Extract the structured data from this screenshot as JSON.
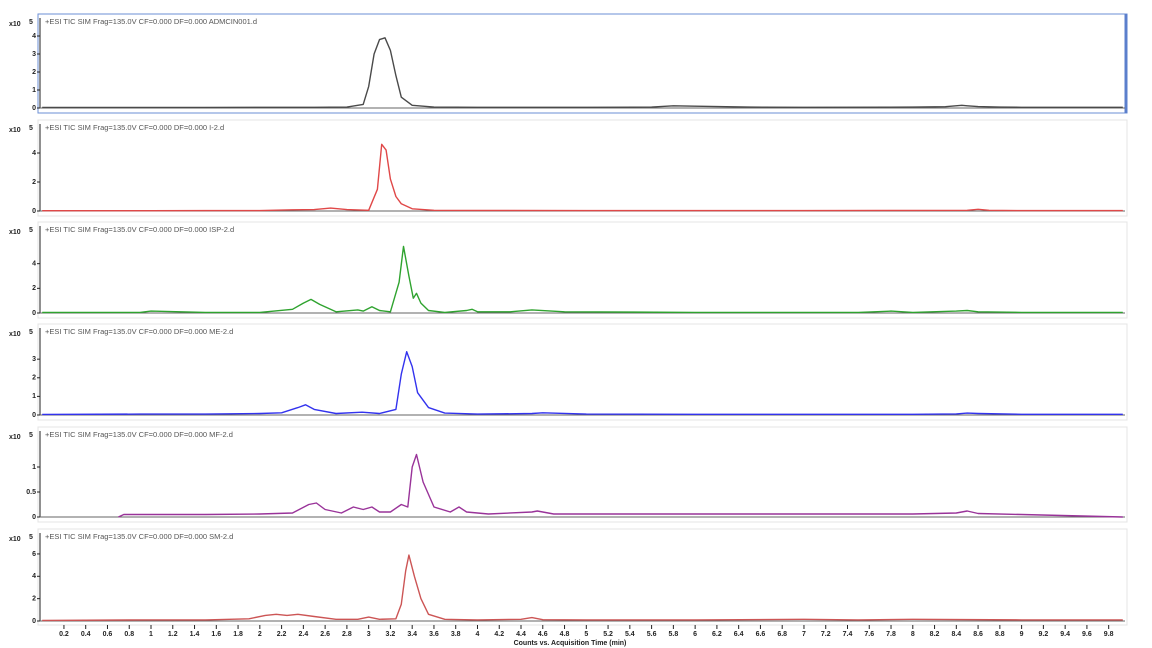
{
  "chart_data": [
    {
      "type": "line",
      "title": "+ESI TIC SIM Frag=135.0V CF=0.000 DF=0.000 ADMCIN001.d",
      "ylabel": "x10",
      "ylabel_exponent": "5",
      "xlim": [
        -0.02,
        9.95
      ],
      "ylim": [
        0,
        4.8
      ],
      "yticks": [
        0,
        1,
        2,
        3,
        4
      ],
      "x": [
        0,
        0.5,
        1,
        1.5,
        2,
        2.5,
        2.8,
        2.95,
        3.0,
        3.05,
        3.1,
        3.15,
        3.2,
        3.25,
        3.3,
        3.4,
        3.6,
        4,
        5,
        5.6,
        5.8,
        6.0,
        6.5,
        7,
        8,
        8.3,
        8.45,
        8.5,
        8.6,
        8.8,
        9,
        9.5,
        9.93
      ],
      "series": [
        {
          "color": "#4a4a4a",
          "values": [
            0.03,
            0.03,
            0.03,
            0.03,
            0.04,
            0.04,
            0.05,
            0.2,
            1.2,
            3.0,
            3.8,
            3.9,
            3.2,
            1.8,
            0.6,
            0.15,
            0.05,
            0.04,
            0.04,
            0.05,
            0.12,
            0.1,
            0.05,
            0.04,
            0.05,
            0.07,
            0.15,
            0.12,
            0.08,
            0.05,
            0.04,
            0.04,
            0.04
          ]
        }
      ]
    },
    {
      "type": "line",
      "title": "+ESI TIC SIM Frag=135.0V CF=0.000 DF=0.000 I-2.d",
      "ylabel": "x10",
      "ylabel_exponent": "5",
      "xlim": [
        -0.02,
        9.95
      ],
      "ylim": [
        0,
        5
      ],
      "yticks": [
        0,
        2,
        4
      ],
      "x": [
        0,
        0.5,
        1,
        1.5,
        2,
        2.3,
        2.5,
        2.65,
        2.8,
        3.0,
        3.08,
        3.12,
        3.16,
        3.2,
        3.25,
        3.3,
        3.4,
        3.6,
        4,
        5,
        6,
        7,
        8,
        8.5,
        8.6,
        8.7,
        9,
        9.5,
        9.93
      ],
      "series": [
        {
          "color": "#e04848",
          "values": [
            0.02,
            0.02,
            0.02,
            0.03,
            0.03,
            0.08,
            0.1,
            0.2,
            0.1,
            0.05,
            1.5,
            4.6,
            4.2,
            2.2,
            1.0,
            0.5,
            0.15,
            0.05,
            0.04,
            0.03,
            0.03,
            0.03,
            0.04,
            0.05,
            0.12,
            0.05,
            0.03,
            0.03,
            0.03
          ]
        }
      ]
    },
    {
      "type": "line",
      "title": "+ESI TIC SIM Frag=135.0V CF=0.000 DF=0.000 ISP-2.d",
      "ylabel": "x10",
      "ylabel_exponent": "5",
      "xlim": [
        -0.02,
        9.95
      ],
      "ylim": [
        0,
        6
      ],
      "yticks": [
        0,
        2,
        4
      ],
      "x": [
        0,
        0.5,
        0.9,
        1.0,
        1.5,
        2,
        2.3,
        2.4,
        2.47,
        2.55,
        2.7,
        2.9,
        2.95,
        3.03,
        3.1,
        3.2,
        3.28,
        3.32,
        3.37,
        3.41,
        3.44,
        3.48,
        3.55,
        3.7,
        3.9,
        3.95,
        4.0,
        4.3,
        4.5,
        4.8,
        6,
        7,
        7.5,
        7.8,
        8,
        8.4,
        8.5,
        8.6,
        9,
        9.93
      ],
      "series": [
        {
          "color": "#2fa32f",
          "values": [
            0.05,
            0.05,
            0.05,
            0.15,
            0.05,
            0.05,
            0.3,
            0.8,
            1.1,
            0.7,
            0.1,
            0.25,
            0.15,
            0.5,
            0.2,
            0.1,
            2.5,
            5.4,
            3.0,
            1.2,
            1.6,
            0.8,
            0.2,
            0.05,
            0.2,
            0.3,
            0.1,
            0.1,
            0.25,
            0.1,
            0.05,
            0.05,
            0.05,
            0.15,
            0.05,
            0.15,
            0.2,
            0.1,
            0.05,
            0.05
          ]
        }
      ]
    },
    {
      "type": "line",
      "title": "+ESI TIC SIM Frag=135.0V CF=0.000 DF=0.000 ME-2.d",
      "ylabel": "x10",
      "ylabel_exponent": "5",
      "xlim": [
        -0.02,
        9.95
      ],
      "ylim": [
        0,
        3.6
      ],
      "yticks": [
        0,
        1,
        2,
        3
      ],
      "x": [
        0,
        0.9,
        1.5,
        2,
        2.2,
        2.35,
        2.42,
        2.5,
        2.7,
        2.94,
        3.1,
        3.25,
        3.3,
        3.35,
        3.4,
        3.45,
        3.55,
        3.7,
        4,
        4.5,
        4.6,
        5,
        6,
        7,
        8,
        8.4,
        8.5,
        8.6,
        9,
        9.93
      ],
      "series": [
        {
          "color": "#3333ee",
          "values": [
            0.03,
            0.05,
            0.05,
            0.08,
            0.12,
            0.4,
            0.55,
            0.3,
            0.08,
            0.15,
            0.08,
            0.3,
            2.2,
            3.4,
            2.6,
            1.2,
            0.4,
            0.1,
            0.05,
            0.08,
            0.12,
            0.05,
            0.04,
            0.04,
            0.04,
            0.06,
            0.1,
            0.08,
            0.04,
            0.04
          ]
        }
      ]
    },
    {
      "type": "line",
      "title": "+ESI TIC SIM Frag=135.0V CF=0.000 DF=0.000 MF-2.d",
      "ylabel": "x10",
      "ylabel_exponent": "5",
      "xlim": [
        -0.02,
        9.95
      ],
      "ylim": [
        0,
        1.4
      ],
      "yticks": [
        0,
        0.5,
        1
      ],
      "x": [
        0.7,
        0.75,
        1,
        1.5,
        2,
        2.3,
        2.45,
        2.52,
        2.6,
        2.75,
        2.86,
        2.95,
        3.03,
        3.1,
        3.2,
        3.3,
        3.36,
        3.4,
        3.44,
        3.5,
        3.6,
        3.75,
        3.83,
        3.9,
        4.1,
        4.5,
        4.55,
        4.7,
        5,
        6,
        7,
        8,
        8.4,
        8.5,
        8.6,
        9,
        9.93
      ],
      "series": [
        {
          "color": "#993399",
          "values": [
            0,
            0.05,
            0.05,
            0.05,
            0.06,
            0.08,
            0.25,
            0.28,
            0.15,
            0.08,
            0.2,
            0.15,
            0.2,
            0.1,
            0.1,
            0.25,
            0.2,
            1.0,
            1.25,
            0.7,
            0.2,
            0.1,
            0.2,
            0.1,
            0.06,
            0.1,
            0.12,
            0.06,
            0.06,
            0.06,
            0.06,
            0.06,
            0.08,
            0.12,
            0.07,
            0.05,
            0
          ]
        }
      ]
    },
    {
      "type": "line",
      "title": "+ESI TIC SIM Frag=135.0V CF=0.000 DF=0.000 SM-2.d",
      "ylabel": "x10",
      "ylabel_exponent": "5",
      "xlabel": "Counts vs. Acquisition Time (min)",
      "xlim": [
        -0.02,
        9.95
      ],
      "ylim": [
        0,
        6.8
      ],
      "yticks": [
        0,
        2,
        4,
        6
      ],
      "xticks": [
        0.2,
        0.4,
        0.6,
        0.8,
        1,
        1.2,
        1.4,
        1.6,
        1.8,
        2,
        2.2,
        2.4,
        2.6,
        2.8,
        3,
        3.2,
        3.4,
        3.6,
        3.8,
        4,
        4.2,
        4.4,
        4.6,
        4.8,
        5,
        5.2,
        5.4,
        5.6,
        5.8,
        6,
        6.2,
        6.4,
        6.6,
        6.8,
        7,
        7.2,
        7.4,
        7.6,
        7.8,
        8,
        8.2,
        8.4,
        8.6,
        8.8,
        9,
        9.2,
        9.4,
        9.6,
        9.8
      ],
      "x": [
        0,
        1,
        1.5,
        1.9,
        2.05,
        2.15,
        2.25,
        2.35,
        2.5,
        2.7,
        2.9,
        3.0,
        3.1,
        3.25,
        3.3,
        3.34,
        3.37,
        3.42,
        3.48,
        3.55,
        3.7,
        4,
        4.4,
        4.5,
        4.6,
        5,
        6,
        7,
        7.5,
        8,
        9,
        9.93
      ],
      "series": [
        {
          "color": "#cc5555",
          "values": [
            0.05,
            0.1,
            0.1,
            0.2,
            0.5,
            0.6,
            0.5,
            0.6,
            0.4,
            0.15,
            0.15,
            0.35,
            0.15,
            0.2,
            1.5,
            4.5,
            5.9,
            4.0,
            2.0,
            0.6,
            0.15,
            0.1,
            0.15,
            0.3,
            0.12,
            0.1,
            0.1,
            0.15,
            0.1,
            0.15,
            0.1,
            0.1
          ]
        }
      ]
    }
  ]
}
